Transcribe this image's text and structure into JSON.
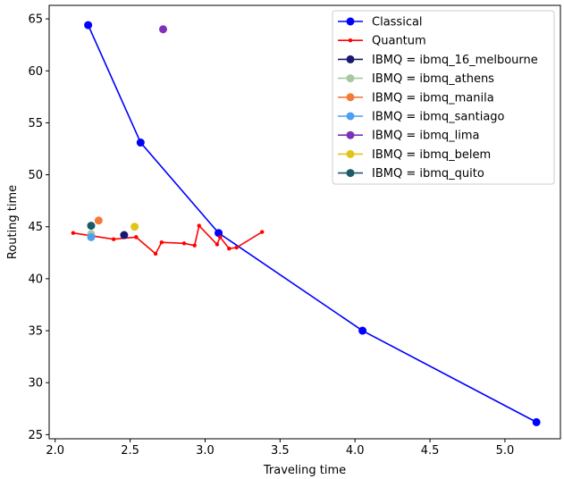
{
  "chart_data": {
    "type": "line",
    "title": "",
    "xlabel": "Traveling time",
    "ylabel": "Routing time",
    "xlim": [
      1.96,
      5.37
    ],
    "ylim": [
      24.6,
      66.3
    ],
    "xticks": [
      2.0,
      2.5,
      3.0,
      3.5,
      4.0,
      4.5,
      5.0
    ],
    "xtick_labels": [
      "2.0",
      "2.5",
      "3.0",
      "3.5",
      "4.0",
      "4.5",
      "5.0"
    ],
    "yticks": [
      25,
      30,
      35,
      40,
      45,
      50,
      55,
      60,
      65
    ],
    "ytick_labels": [
      "25",
      "30",
      "35",
      "40",
      "45",
      "50",
      "55",
      "60",
      "65"
    ],
    "grid": false,
    "legend_position": "top-right",
    "series": [
      {
        "name": "Classical",
        "color": "#0000ff",
        "style": "line-marker",
        "x": [
          2.22,
          2.57,
          3.09,
          4.05,
          5.21
        ],
        "y": [
          64.4,
          53.1,
          44.4,
          35.0,
          26.2
        ]
      },
      {
        "name": "Quantum",
        "color": "#ff0000",
        "style": "line-small-marker",
        "x": [
          2.12,
          2.39,
          2.54,
          2.67,
          2.71,
          2.86,
          2.93,
          2.96,
          3.08,
          3.1,
          3.16,
          3.21,
          3.38
        ],
        "y": [
          44.4,
          43.8,
          44.0,
          42.4,
          43.5,
          43.4,
          43.2,
          45.1,
          43.3,
          44.0,
          42.9,
          43.0,
          44.5
        ]
      },
      {
        "name": "IBMQ = ibmq_16_melbourne",
        "color": "#191970",
        "style": "marker",
        "x": [
          2.46
        ],
        "y": [
          44.2
        ]
      },
      {
        "name": "IBMQ = ibmq_athens",
        "color": "#a8c8a0",
        "style": "marker",
        "x": [
          2.24
        ],
        "y": [
          44.3
        ]
      },
      {
        "name": "IBMQ = ibmq_manila",
        "color": "#f47a3a",
        "style": "marker",
        "x": [
          2.29
        ],
        "y": [
          45.6
        ]
      },
      {
        "name": "IBMQ = ibmq_santiago",
        "color": "#4d9ff0",
        "style": "marker",
        "x": [
          2.24
        ],
        "y": [
          44.0
        ]
      },
      {
        "name": "IBMQ = ibmq_lima",
        "color": "#7f30b8",
        "style": "marker",
        "x": [
          2.72
        ],
        "y": [
          64.0
        ]
      },
      {
        "name": "IBMQ = ibmq_belem",
        "color": "#e2c31a",
        "style": "marker",
        "x": [
          2.53
        ],
        "y": [
          45.0
        ]
      },
      {
        "name": "IBMQ = ibmq_quito",
        "color": "#1c5a6a",
        "style": "marker",
        "x": [
          2.24
        ],
        "y": [
          45.1
        ]
      }
    ]
  }
}
